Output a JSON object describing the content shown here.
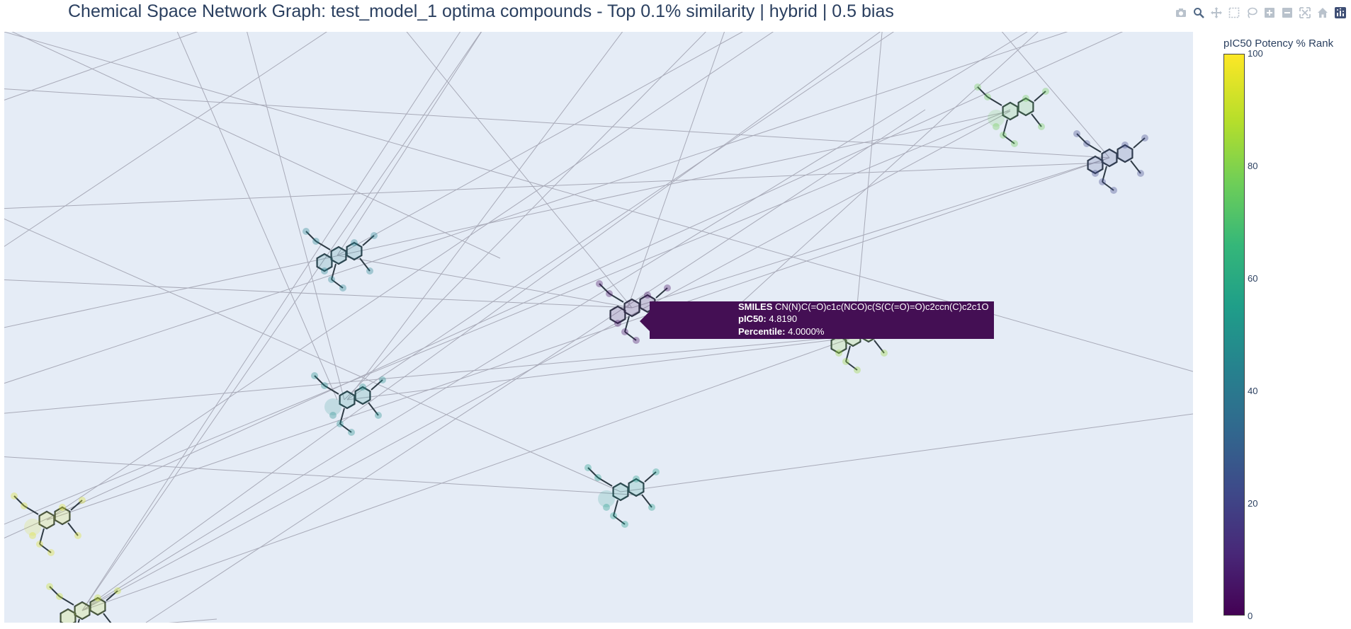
{
  "title": "Chemical Space Network Graph: test_model_1 optima compounds - Top 0.1% similarity | hybrid | 0.5 bias",
  "modebar": [
    {
      "name": "camera-icon"
    },
    {
      "name": "zoom-icon"
    },
    {
      "name": "pan-icon"
    },
    {
      "name": "box-select-icon"
    },
    {
      "name": "lasso-select-icon"
    },
    {
      "name": "zoom-in-icon"
    },
    {
      "name": "zoom-out-icon"
    },
    {
      "name": "autoscale-icon"
    },
    {
      "name": "home-icon"
    },
    {
      "name": "plotly-logo-icon"
    }
  ],
  "tooltip": {
    "smiles_label": "SMILES",
    "smiles_value": "CN(N)C(=O)c1c(NCO)c(S(C(=O)=O)c2ccn(C)c2c1O",
    "pic50_label": "pIC50:",
    "pic50_value": "4.8190",
    "percentile_label": "Percentile:",
    "percentile_value": "4.0000%",
    "color": "#440f54"
  },
  "colorbar": {
    "title": "pIC50 Potency % Rank",
    "ticks": [
      "100",
      "80",
      "60",
      "40",
      "20",
      "0"
    ],
    "colorscale": "viridis"
  },
  "chart_data": {
    "type": "network",
    "colorscale": "viridis",
    "edge_color": "#a8aab8",
    "background": "#e5ecf6",
    "nodes": [
      {
        "id": "n1",
        "percentile": 45
      },
      {
        "id": "n2",
        "percentile": 50
      },
      {
        "id": "n3",
        "percentile": 4
      },
      {
        "id": "n4",
        "percentile": 55
      },
      {
        "id": "n5",
        "percentile": 85
      },
      {
        "id": "n6",
        "percentile": 78
      },
      {
        "id": "n7",
        "percentile": 22
      },
      {
        "id": "n8",
        "percentile": 95
      },
      {
        "id": "n9",
        "percentile": 92
      }
    ]
  }
}
